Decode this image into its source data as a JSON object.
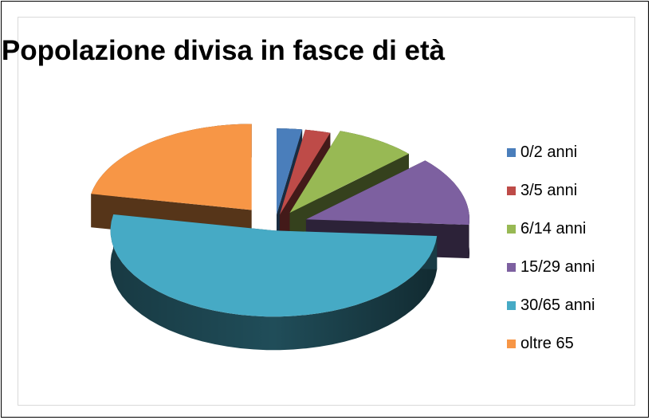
{
  "chart_data": {
    "type": "pie",
    "title": "Popolazione divisa in fasce di età",
    "categories": [
      "0/2 anni",
      "3/5 anni",
      "6/14 anni",
      "15/29 anni",
      "30/65 anni",
      "oltre 65"
    ],
    "values": [
      2.5,
      2.5,
      8,
      13,
      52,
      22
    ],
    "colors": [
      "#4a7ebb",
      "#be4b48",
      "#98b954",
      "#7d60a0",
      "#46aac5",
      "#f79646"
    ],
    "exploded": true,
    "three_d": true,
    "legend_position": "right"
  }
}
